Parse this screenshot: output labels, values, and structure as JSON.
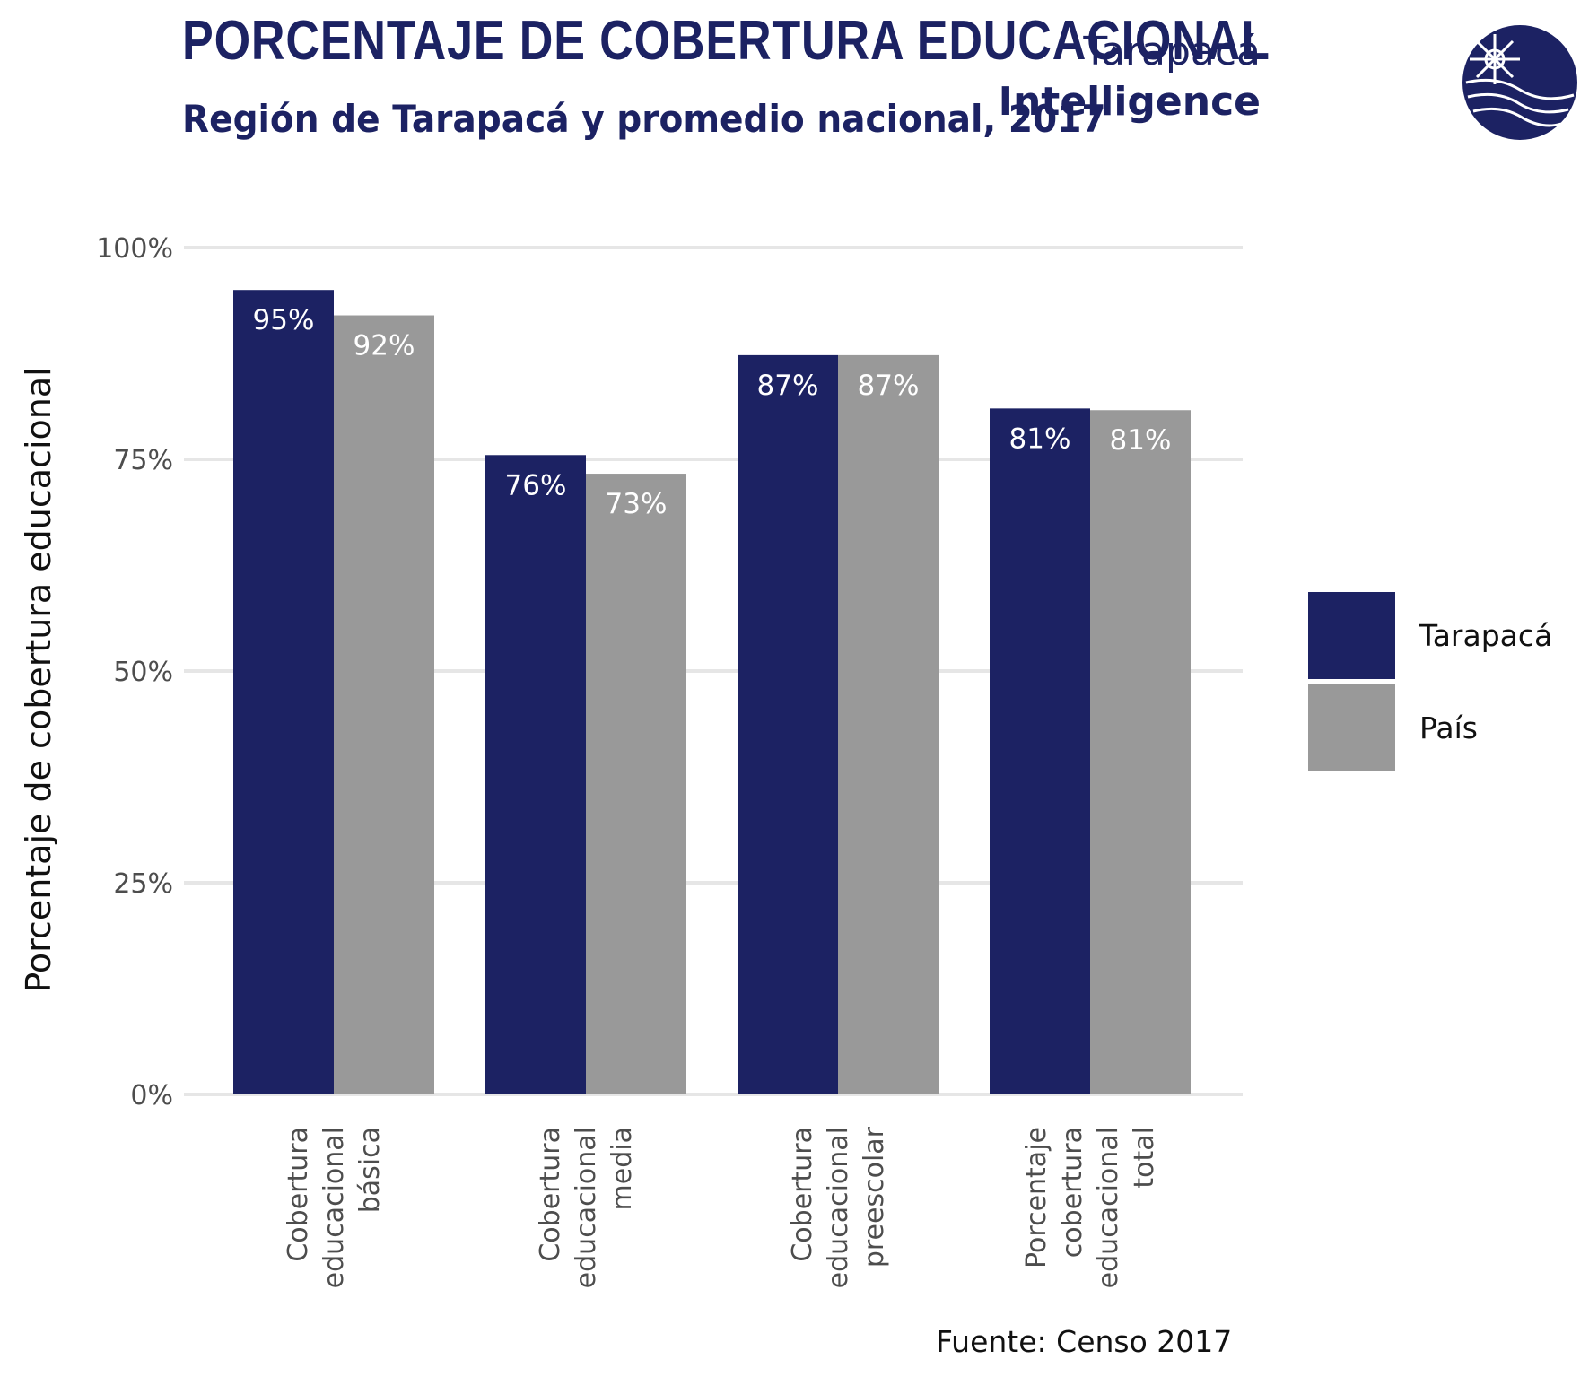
{
  "header": {
    "title": "PORCENTAJE DE COBERTURA EDUCACIONAL",
    "subtitle": "Región de Tarapacá y promedio nacional, 2017"
  },
  "brand": {
    "line1": "Tarapacá",
    "line2": "Intelligence",
    "logo_icon": "globe-compass-icon"
  },
  "source": "Fuente: Censo 2017",
  "colors": {
    "tarapaca": "#1c2263",
    "pais": "#999999",
    "grid": "#e6e6e6"
  },
  "chart_data": {
    "type": "bar",
    "title": "PORCENTAJE DE COBERTURA EDUCACIONAL",
    "subtitle": "Región de Tarapacá y promedio nacional, 2017",
    "xlabel": "",
    "ylabel": "Porcentaje de cobertura educacional",
    "ylim": [
      0,
      100
    ],
    "yticks": [
      0,
      25,
      50,
      75,
      100
    ],
    "ytick_labels": [
      "0%",
      "25%",
      "50%",
      "75%",
      "100%"
    ],
    "grid": true,
    "legend_position": "right",
    "categories": [
      [
        "Cobertura",
        "educacional",
        "básica"
      ],
      [
        "Cobertura",
        "educacional",
        "media"
      ],
      [
        "Cobertura",
        "educacional",
        "preescolar"
      ],
      [
        "Porcentaje",
        "cobertura",
        "educacional",
        "total"
      ]
    ],
    "series": [
      {
        "name": "Tarapacá",
        "values": [
          95,
          75.5,
          87.3,
          81
        ],
        "labels": [
          "95%",
          "76%",
          "87%",
          "81%"
        ]
      },
      {
        "name": "País",
        "values": [
          92,
          73.3,
          87.3,
          80.8
        ],
        "labels": [
          "92%",
          "73%",
          "87%",
          "81%"
        ]
      }
    ]
  }
}
